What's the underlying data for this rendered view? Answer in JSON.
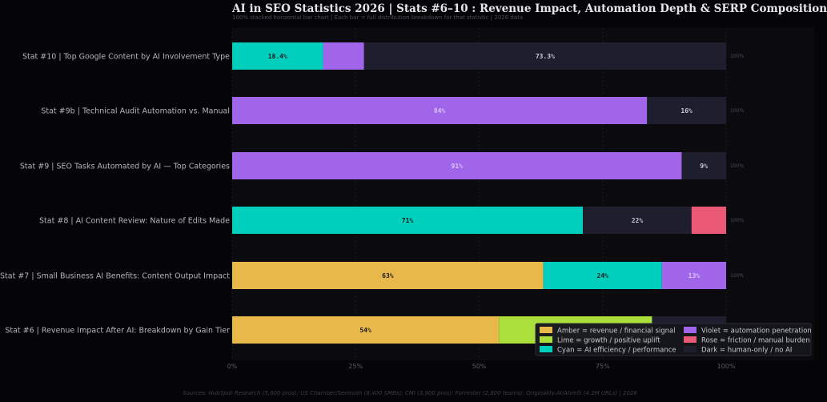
{
  "chart_data": {
    "type": "bar",
    "orientation": "horizontal",
    "stacked": "100%",
    "title": "AI in SEO Statistics 2026  |  Stats #6–10 : Revenue Impact, Automation Depth & SERP Composition",
    "subtitle": "100% stacked horizontal bar chart  |  Each bar = full distribution breakdown for that statistic  |  2026 data",
    "source": "Sources: HubSpot Research (5,600 pros); US Chamber/Semrush (8,400 SMBs); CMI (3,900 pros); Forrester (2,800 teams); Originality.AI/Ahrefs (4.2M URLs)  |  2026",
    "xlim": [
      0,
      100
    ],
    "x_ticks": [
      "0%",
      "25%",
      "50%",
      "75%",
      "100%"
    ],
    "grid": true,
    "legend_position": "bottom-right",
    "legend": [
      {
        "label": "Amber = revenue / financial signal",
        "color": "#e8b84a"
      },
      {
        "label": "Lime = growth / positive uplift",
        "color": "#abdf3c"
      },
      {
        "label": "Cyan = AI efficiency / performance",
        "color": "#00cfbd"
      },
      {
        "label": "Violet = automation penetration",
        "color": "#a165e9"
      },
      {
        "label": "Rose = friction / manual burden",
        "color": "#e95875"
      },
      {
        "label": "Dark = human-only / no AI",
        "color": "#1e1e2e"
      }
    ],
    "total_label": "100%",
    "rows": [
      {
        "label": "Stat #10  |  Top Google Content by AI Involvement Type",
        "segments": [
          {
            "value": 18.4,
            "color": "#00cfbd",
            "text": "18.4%"
          },
          {
            "value": 8.3,
            "color": "#a165e9",
            "text": ""
          },
          {
            "value": 73.3,
            "color": "#1e1e2e",
            "text": "73.3%"
          }
        ]
      },
      {
        "label": "Stat #9b  |  Technical Audit Automation vs. Manual",
        "segments": [
          {
            "value": 84,
            "color": "#a165e9",
            "text": "84%"
          },
          {
            "value": 16,
            "color": "#1e1e2e",
            "text": "16%"
          }
        ]
      },
      {
        "label": "Stat #9  |  SEO Tasks Automated by AI — Top Categories",
        "segments": [
          {
            "value": 91,
            "color": "#a165e9",
            "text": "91%"
          },
          {
            "value": 9,
            "color": "#1e1e2e",
            "text": "9%"
          }
        ]
      },
      {
        "label": "Stat #8  |  AI Content Review: Nature of Edits Made",
        "segments": [
          {
            "value": 71,
            "color": "#00cfbd",
            "text": "71%"
          },
          {
            "value": 22,
            "color": "#1e1e2e",
            "text": "22%"
          },
          {
            "value": 7,
            "color": "#e95875",
            "text": ""
          }
        ]
      },
      {
        "label": "Stat #7  |  Small Business AI Benefits: Content Output Impact",
        "segments": [
          {
            "value": 63,
            "color": "#e8b84a",
            "text": "63%"
          },
          {
            "value": 24,
            "color": "#00cfbd",
            "text": "24%"
          },
          {
            "value": 13,
            "color": "#a165e9",
            "text": "13%"
          }
        ]
      },
      {
        "label": "Stat #6  |  Revenue Impact After AI: Breakdown by Gain Tier",
        "segments": [
          {
            "value": 54,
            "color": "#e8b84a",
            "text": "54%"
          },
          {
            "value": 31,
            "color": "#abdf3c",
            "text": ""
          },
          {
            "value": 15,
            "color": "#1e1e2e",
            "text": ""
          }
        ]
      }
    ]
  }
}
